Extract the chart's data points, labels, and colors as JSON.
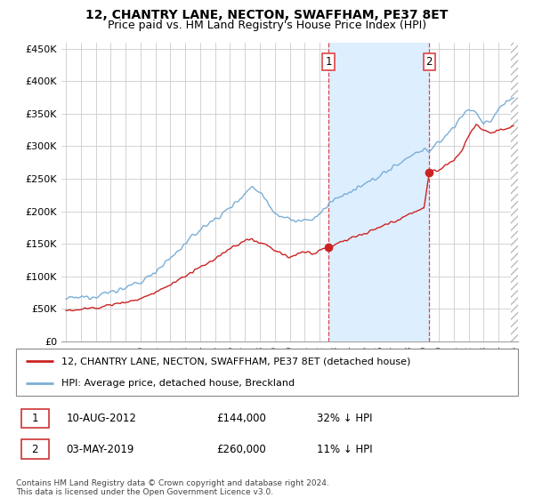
{
  "title": "12, CHANTRY LANE, NECTON, SWAFFHAM, PE37 8ET",
  "subtitle": "Price paid vs. HM Land Registry's House Price Index (HPI)",
  "ylabel_ticks": [
    "£0",
    "£50K",
    "£100K",
    "£150K",
    "£200K",
    "£250K",
    "£300K",
    "£350K",
    "£400K",
    "£450K"
  ],
  "ytick_values": [
    0,
    50000,
    100000,
    150000,
    200000,
    250000,
    300000,
    350000,
    400000,
    450000
  ],
  "ylim": [
    0,
    460000
  ],
  "xlim_start": 1994.7,
  "xlim_end": 2025.3,
  "transaction1_year": 2012.6,
  "transaction1_price": 144000,
  "transaction1_date": "10-AUG-2012",
  "transaction1_pct": "32% ↓ HPI",
  "transaction2_year": 2019.35,
  "transaction2_price": 260000,
  "transaction2_date": "03-MAY-2019",
  "transaction2_pct": "11% ↓ HPI",
  "legend_label1": "12, CHANTRY LANE, NECTON, SWAFFHAM, PE37 8ET (detached house)",
  "legend_label2": "HPI: Average price, detached house, Breckland",
  "footer": "Contains HM Land Registry data © Crown copyright and database right 2024.\nThis data is licensed under the Open Government Licence v3.0.",
  "hpi_color": "#7aaed6",
  "price_color": "#cc2222",
  "vline_color": "#dd4444",
  "shade_color": "#ddeeff",
  "hatch_color": "#cccccc",
  "background_color": "#ffffff",
  "grid_color": "#cccccc",
  "title_fontsize": 10,
  "subtitle_fontsize": 9
}
